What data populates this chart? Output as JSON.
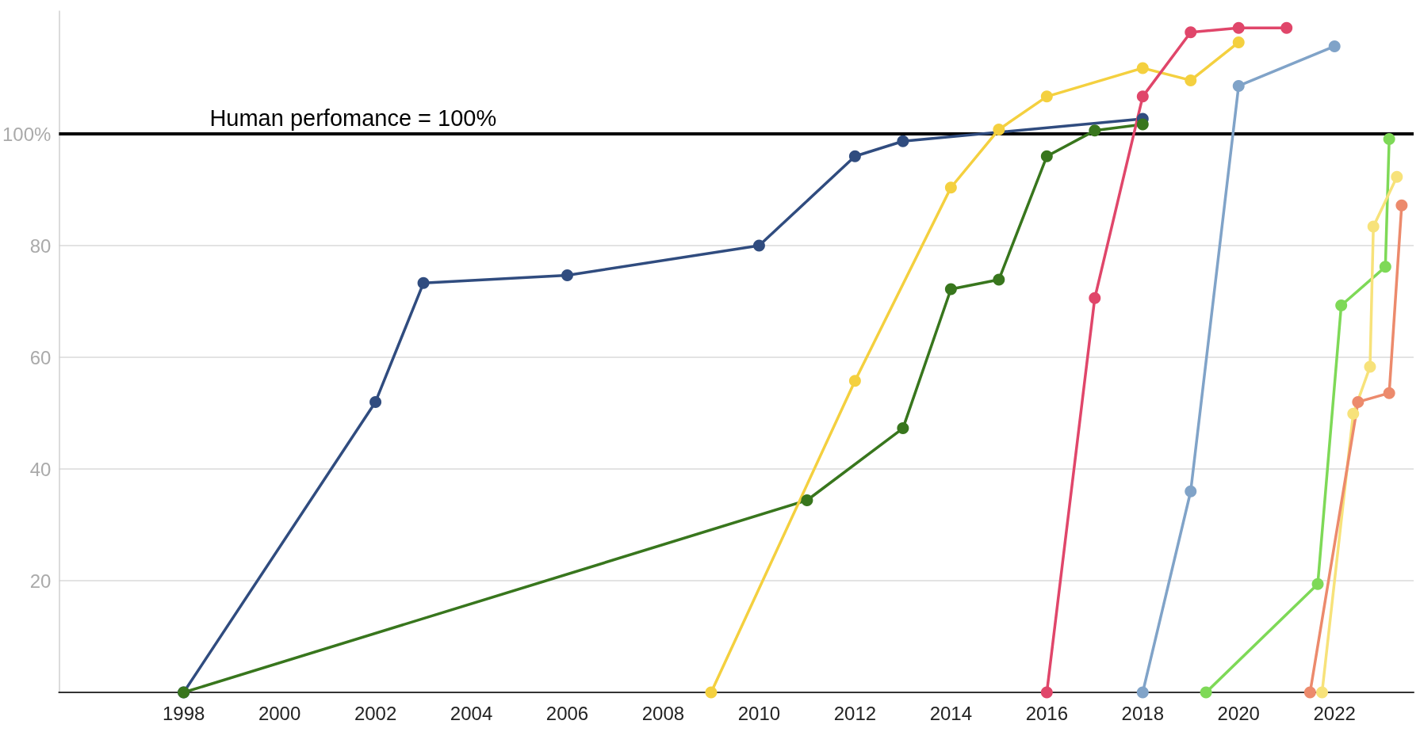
{
  "chart_data": {
    "type": "line",
    "marker": "circle",
    "line_style": "solid",
    "grid": "y",
    "xlim": [
      1995.4,
      2023.65
    ],
    "ylim": [
      0,
      122
    ],
    "xticks": [
      1998,
      2000,
      2002,
      2004,
      2006,
      2008,
      2010,
      2012,
      2014,
      2016,
      2018,
      2020,
      2022
    ],
    "yticks": [
      {
        "value": 0,
        "label": null
      },
      20,
      40,
      60,
      80,
      {
        "value": 100,
        "label": "100%"
      }
    ],
    "ref_lines": [
      {
        "axis": "y",
        "value": 100,
        "label": "Human perfomance = 100%",
        "color": "#000000"
      }
    ],
    "series": [
      {
        "color": "#304c7f",
        "x": [
          1998,
          2002,
          2003,
          2006,
          2010,
          2012,
          2013,
          2018
        ],
        "values": [
          0,
          52.0,
          73.3,
          74.7,
          80.0,
          96.0,
          98.7,
          102.7
        ]
      },
      {
        "color": "#38761d",
        "x": [
          1998,
          2011,
          2013,
          2014,
          2015,
          2016,
          2017,
          2018
        ],
        "values": [
          0,
          34.4,
          47.3,
          72.2,
          73.9,
          96.0,
          100.6,
          101.7
        ]
      },
      {
        "color": "#f4d03f",
        "x": [
          2009,
          2012,
          2014,
          2015,
          2016,
          2018,
          2019,
          2020
        ],
        "values": [
          0,
          55.8,
          90.4,
          100.8,
          106.7,
          111.8,
          109.6,
          116.4
        ]
      },
      {
        "color": "#e0466a",
        "x": [
          2016,
          2017,
          2018,
          2019,
          2020,
          2021
        ],
        "values": [
          0,
          70.6,
          106.7,
          118.2,
          119.0,
          119.0
        ]
      },
      {
        "color": "#80a3c8",
        "x": [
          2018,
          2019,
          2020,
          2022
        ],
        "values": [
          0,
          36.0,
          108.6,
          115.7
        ]
      },
      {
        "color": "#7ed957",
        "x": [
          2019.32,
          2021.65,
          2022.14,
          2023.06,
          2023.14
        ],
        "values": [
          0,
          19.4,
          69.3,
          76.2,
          99.1
        ]
      },
      {
        "color": "#f7e27a",
        "x": [
          2021.74,
          2022.39,
          2022.74,
          2022.81,
          2023.3
        ],
        "values": [
          0,
          49.9,
          58.3,
          83.4,
          92.3
        ]
      },
      {
        "color": "#ec8a6c",
        "x": [
          2021.49,
          2022.49,
          2023.14,
          2023.4
        ],
        "values": [
          0,
          52.0,
          53.6,
          87.2
        ]
      }
    ]
  }
}
